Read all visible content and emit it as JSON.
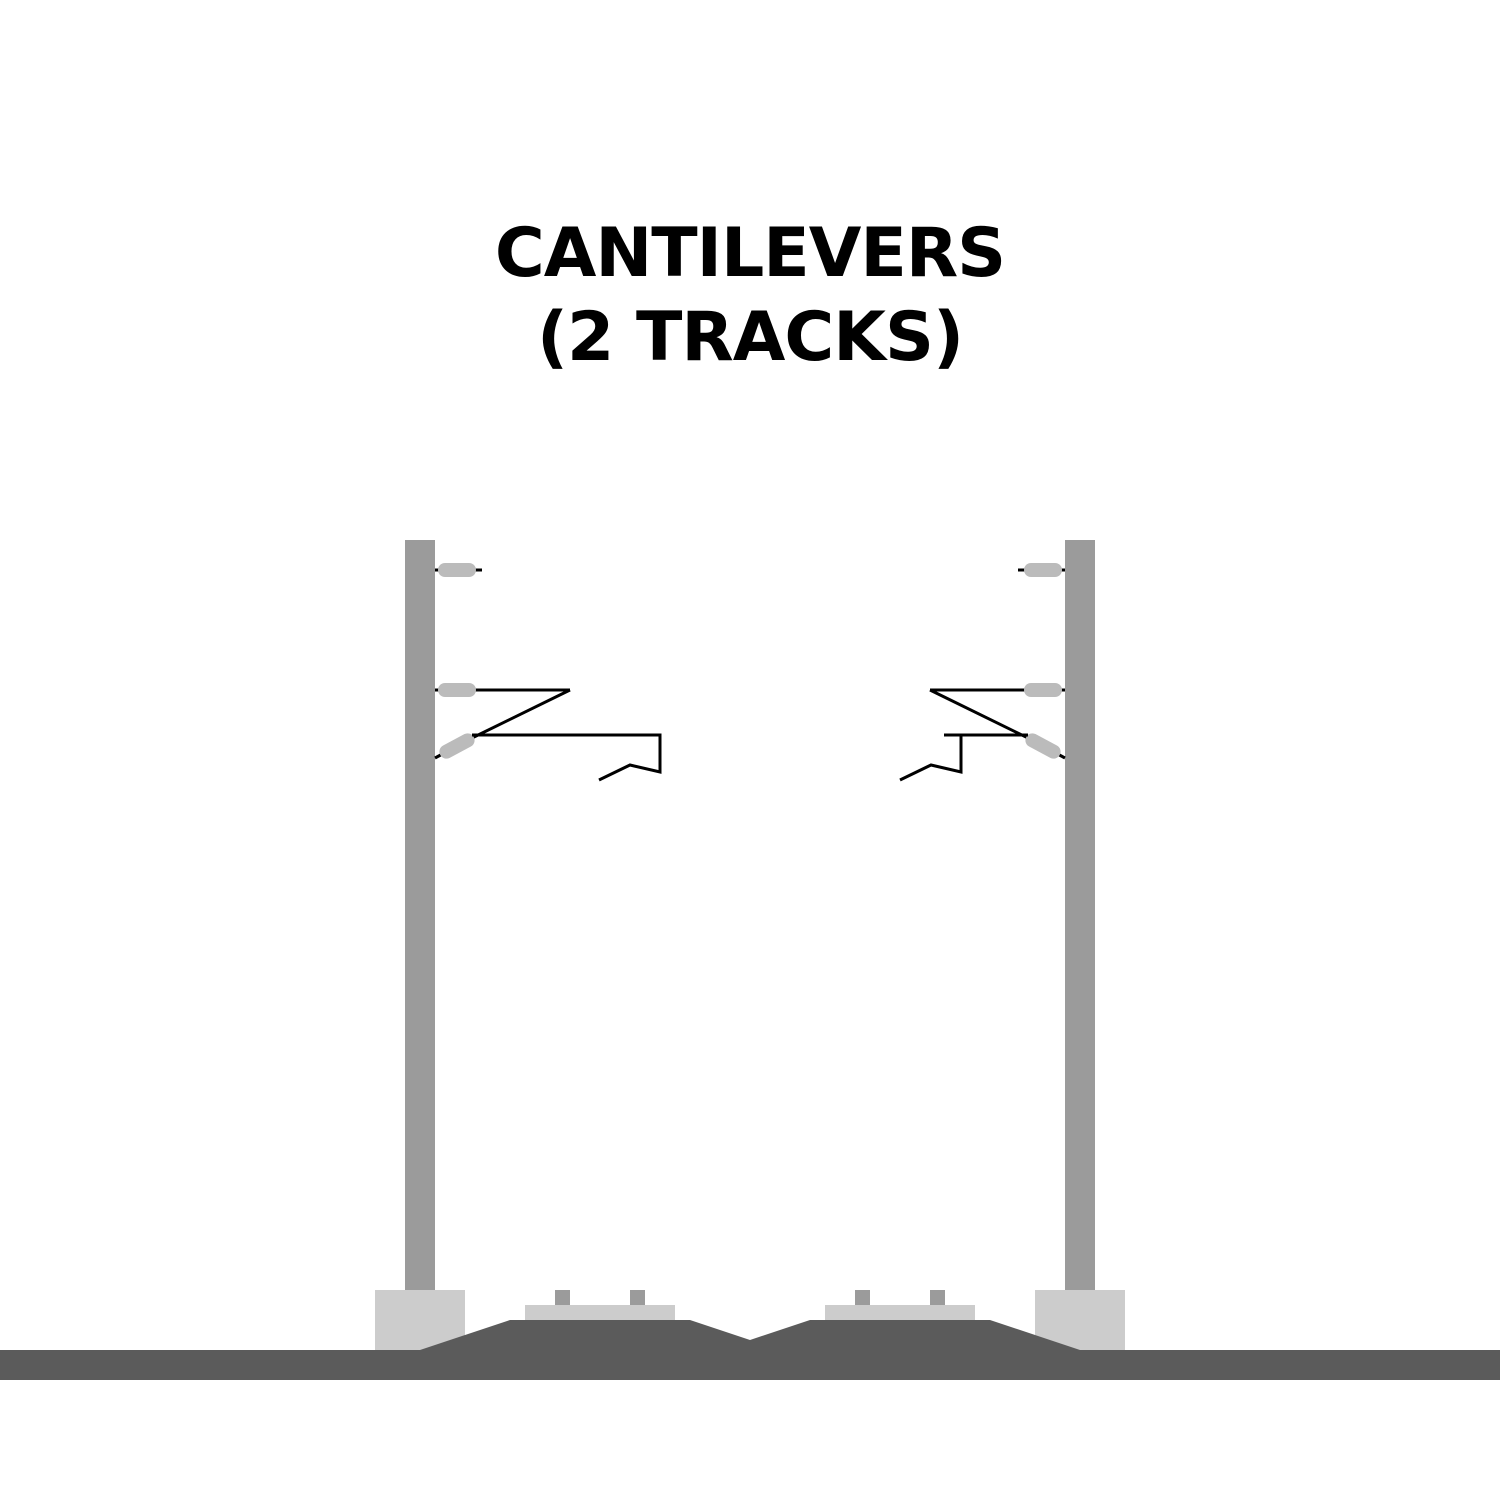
{
  "diagram": {
    "title_line1": "CANTILEVERS",
    "title_line2": "(2 TRACKS)",
    "colors": {
      "mast": "#9b9b9b",
      "foundation": "#cccccc",
      "ground": "#5b5b5b",
      "insulator": "#bbbbbb",
      "sleeper": "#cccccc",
      "rail": "#9b9b9b",
      "wire": "#000000"
    }
  }
}
